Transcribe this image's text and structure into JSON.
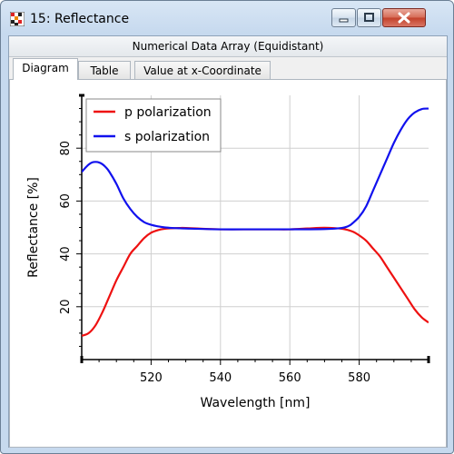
{
  "window": {
    "title": "15: Reflectance",
    "subtitle": "Numerical Data Array (Equidistant)",
    "tabs": [
      {
        "label": "Diagram",
        "active": true
      },
      {
        "label": "Table",
        "active": false
      },
      {
        "label": "Value at x-Coordinate",
        "active": false
      }
    ]
  },
  "colors": {
    "p": "#ee1111",
    "s": "#1111ee",
    "titlebar": "#c6d9ee",
    "close": "#c2402a"
  },
  "chart_data": {
    "type": "line",
    "title": "",
    "xlabel": "Wavelength [nm]",
    "ylabel": "Reflectance [%]",
    "xlim": [
      500,
      600
    ],
    "ylim": [
      0,
      100
    ],
    "xticks": [
      520,
      540,
      560,
      580
    ],
    "yticks": [
      20,
      40,
      60,
      80
    ],
    "legend_position": "top-left",
    "series": [
      {
        "name": "p polarization",
        "color": "#ee1111",
        "x": [
          500,
          502,
          504,
          506,
          508,
          510,
          512,
          514,
          516,
          518,
          520,
          522,
          524,
          526,
          528,
          530,
          535,
          540,
          545,
          550,
          555,
          560,
          565,
          570,
          575,
          578,
          580,
          582,
          584,
          586,
          588,
          590,
          592,
          594,
          596,
          598,
          600
        ],
        "y": [
          9,
          10,
          13,
          18,
          24,
          30,
          35,
          40,
          43,
          46,
          48,
          49,
          49.5,
          49.7,
          49.8,
          49.8,
          49.5,
          49.3,
          49.3,
          49.3,
          49.3,
          49.3,
          49.6,
          49.9,
          49.5,
          48.5,
          47,
          45,
          42,
          39,
          35,
          31,
          27,
          23,
          19,
          16,
          14
        ]
      },
      {
        "name": "s polarization",
        "color": "#1111ee",
        "x": [
          500,
          501,
          502,
          503,
          504,
          505,
          506,
          507,
          508,
          510,
          512,
          514,
          516,
          518,
          520,
          522,
          524,
          526,
          528,
          530,
          540,
          550,
          560,
          570,
          575,
          577,
          578,
          580,
          582,
          584,
          586,
          588,
          590,
          592,
          594,
          596,
          598,
          600
        ],
        "y": [
          71,
          72.5,
          73.8,
          74.6,
          74.8,
          74.6,
          73.9,
          72.7,
          71,
          66.5,
          61,
          57,
          54,
          52,
          51,
          50.4,
          50,
          49.8,
          49.7,
          49.6,
          49.3,
          49.3,
          49.3,
          49.4,
          49.8,
          50.6,
          51.5,
          54,
          58,
          64,
          70,
          76,
          82,
          87,
          91,
          93.5,
          94.8,
          95
        ]
      }
    ]
  }
}
